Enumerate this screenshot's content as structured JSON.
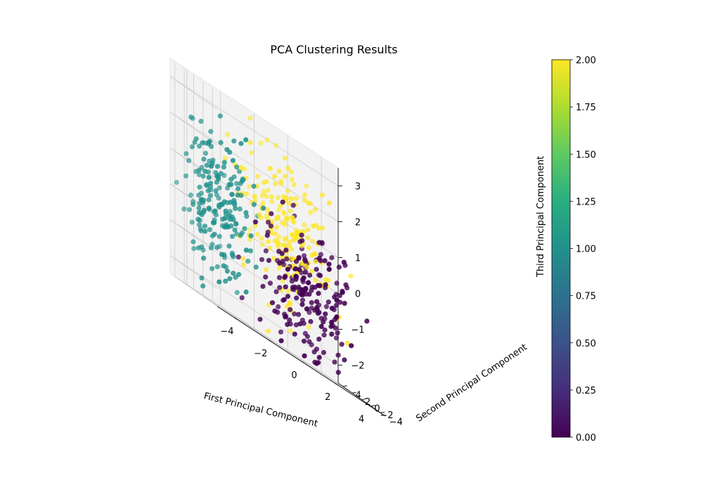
{
  "chart_data": {
    "type": "scatter",
    "projection": "3d",
    "title": "PCA Clustering Results",
    "xlabel": "First Principal Component",
    "ylabel": "Second Principal Component",
    "zlabel": "Third Principal Component",
    "xlim": [
      -5,
      5
    ],
    "ylim": [
      -5,
      5
    ],
    "zlim": [
      -2.5,
      3.5
    ],
    "xticks": [
      -4,
      -2,
      0,
      2,
      4
    ],
    "yticks": [
      -4,
      -2,
      0,
      2,
      4
    ],
    "zticks": [
      -2,
      -1,
      0,
      1,
      2,
      3
    ],
    "grid": true,
    "colormap": "viridis",
    "colorbar": {
      "label": "",
      "range": [
        0,
        2
      ],
      "ticks": [
        "0.00",
        "0.25",
        "0.50",
        "0.75",
        "1.00",
        "1.25",
        "1.50",
        "1.75",
        "2.00"
      ]
    },
    "series": [
      {
        "cluster": 0,
        "color": "#440154",
        "center": [
          1.5,
          -1.0,
          -0.5
        ],
        "spread": [
          1.4,
          1.6,
          0.9
        ],
        "count": 200
      },
      {
        "cluster": 1,
        "color": "#21918c",
        "center": [
          -3.5,
          0.5,
          0.3
        ],
        "spread": [
          1.0,
          1.5,
          1.0
        ],
        "count": 200
      },
      {
        "cluster": 2,
        "color": "#fde725",
        "center": [
          1.0,
          1.5,
          0.8
        ],
        "spread": [
          1.3,
          1.4,
          0.9
        ],
        "count": 200
      }
    ]
  }
}
